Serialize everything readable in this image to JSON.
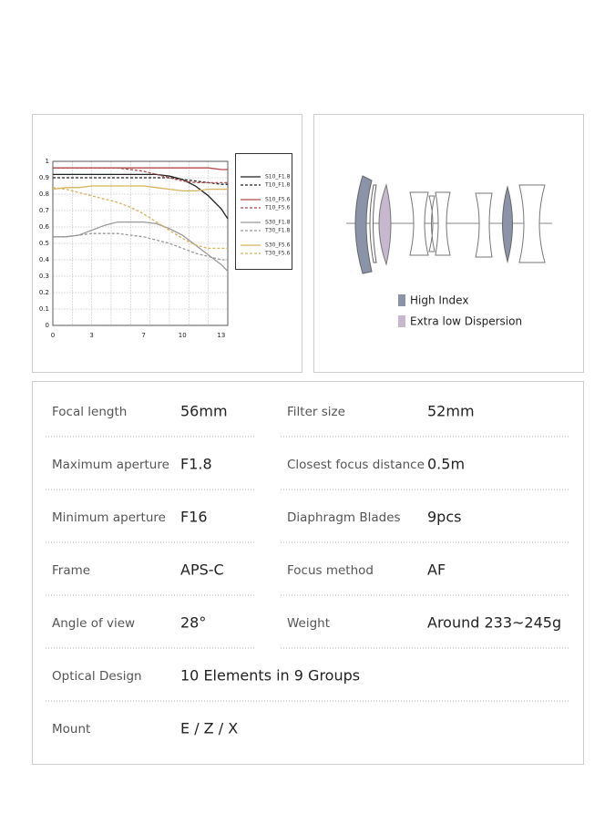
{
  "chart_data": {
    "type": "line",
    "x": [
      0,
      1,
      2,
      3,
      4,
      5,
      6,
      7,
      8,
      9,
      10,
      11,
      12,
      13,
      13.5
    ],
    "xlim": [
      0,
      13.5
    ],
    "xticks": [
      0,
      3,
      7,
      10,
      13
    ],
    "ylim": [
      0,
      1
    ],
    "yticks": [
      0,
      0.1,
      0.2,
      0.3,
      0.4,
      0.5,
      0.6,
      0.7,
      0.8,
      0.9,
      1
    ],
    "grid": true,
    "legend": "right",
    "series": [
      {
        "name": "S10_F1.8",
        "color": "#222222",
        "dash": false,
        "values": [
          0.92,
          0.92,
          0.92,
          0.92,
          0.92,
          0.92,
          0.92,
          0.92,
          0.92,
          0.91,
          0.89,
          0.85,
          0.79,
          0.71,
          0.65
        ]
      },
      {
        "name": "T10_F1.8",
        "color": "#222222",
        "dash": true,
        "values": [
          0.9,
          0.9,
          0.9,
          0.9,
          0.9,
          0.9,
          0.9,
          0.9,
          0.9,
          0.9,
          0.89,
          0.88,
          0.87,
          0.86,
          0.86
        ]
      },
      {
        "name": "S10_F5.6",
        "color": "#b24a4a",
        "dash": false,
        "values": [
          0.96,
          0.96,
          0.96,
          0.96,
          0.96,
          0.96,
          0.96,
          0.96,
          0.96,
          0.96,
          0.96,
          0.96,
          0.96,
          0.95,
          0.95
        ]
      },
      {
        "name": "T10_F5.6",
        "color": "#b24a4a",
        "dash": true,
        "values": [
          0.96,
          0.96,
          0.96,
          0.96,
          0.96,
          0.96,
          0.95,
          0.94,
          0.92,
          0.9,
          0.88,
          0.87,
          0.87,
          0.87,
          0.87
        ]
      },
      {
        "name": "S30_F1.8",
        "color": "#999999",
        "dash": false,
        "values": [
          0.54,
          0.54,
          0.55,
          0.58,
          0.61,
          0.63,
          0.63,
          0.63,
          0.62,
          0.59,
          0.55,
          0.49,
          0.43,
          0.37,
          0.33
        ]
      },
      {
        "name": "T30_F1.8",
        "color": "#999999",
        "dash": true,
        "values": [
          0.54,
          0.54,
          0.55,
          0.56,
          0.56,
          0.56,
          0.55,
          0.54,
          0.52,
          0.5,
          0.47,
          0.44,
          0.42,
          0.4,
          0.4
        ]
      },
      {
        "name": "S30_F5.6",
        "color": "#d6b35e",
        "dash": false,
        "values": [
          0.83,
          0.84,
          0.84,
          0.85,
          0.85,
          0.85,
          0.85,
          0.85,
          0.84,
          0.83,
          0.82,
          0.82,
          0.83,
          0.83,
          0.83
        ]
      },
      {
        "name": "T30_F5.6",
        "color": "#d6b35e",
        "dash": true,
        "values": [
          0.84,
          0.83,
          0.81,
          0.79,
          0.77,
          0.75,
          0.72,
          0.68,
          0.63,
          0.58,
          0.53,
          0.49,
          0.47,
          0.47,
          0.47
        ]
      }
    ]
  },
  "diagram": {
    "legend": [
      "High Index",
      "Extra low Dispersion"
    ]
  },
  "specs": {
    "rows": [
      [
        "Focal length",
        "56mm",
        "Filter size",
        "52mm"
      ],
      [
        "Maximum aperture",
        "F1.8",
        "Closest focus distance",
        "0.5m"
      ],
      [
        "Minimum aperture",
        "F16",
        "Diaphragm Blades",
        "9pcs"
      ],
      [
        "Frame",
        "APS-C",
        "Focus method",
        "AF"
      ],
      [
        "Angle of view",
        "28°",
        "Weight",
        "Around 233~245g"
      ],
      [
        "Optical Design",
        "10 Elements in 9 Groups"
      ],
      [
        "Mount",
        "E / Z / X"
      ]
    ]
  }
}
